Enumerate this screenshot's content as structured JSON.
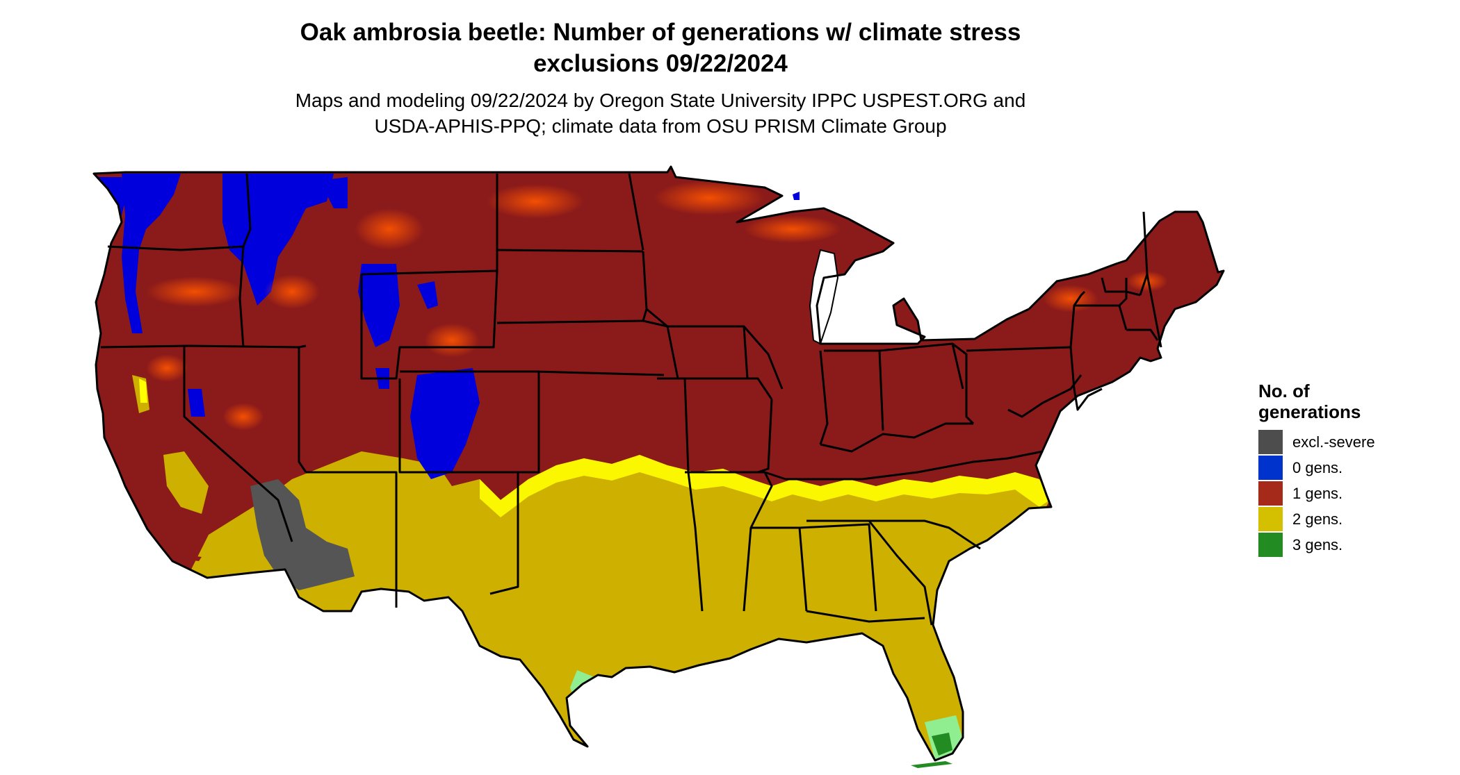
{
  "title": {
    "line1": "Oak ambrosia beetle: Number of generations w/ climate stress",
    "line2": "exclusions 09/22/2024"
  },
  "subtitle": {
    "line1": "Maps and modeling 09/22/2024 by Oregon State University IPPC USPEST.ORG and",
    "line2": "USDA-APHIS-PPQ; climate data from OSU PRISM Climate Group"
  },
  "legend": {
    "title_line1": "No. of",
    "title_line2": "generations",
    "items": [
      {
        "label": "excl.-severe",
        "color": "#4d4d4d"
      },
      {
        "label": "0 gens.",
        "color": "#0033cc"
      },
      {
        "label": "1 gens.",
        "color": "#a52a1a"
      },
      {
        "label": "2 gens.",
        "color": "#d4c000"
      },
      {
        "label": "3 gens.",
        "color": "#228b22"
      }
    ]
  },
  "map_colors": {
    "one_gen": "#8b1a1a",
    "one_gen_light": "#ff4c00",
    "zero_gen": "#0000dd",
    "two_gen": "#cdb000",
    "two_gen_light": "#ffff00",
    "excluded": "#555555",
    "three_gen": "#90ee90",
    "three_gen_dark": "#228b22",
    "borders": "#000000"
  }
}
